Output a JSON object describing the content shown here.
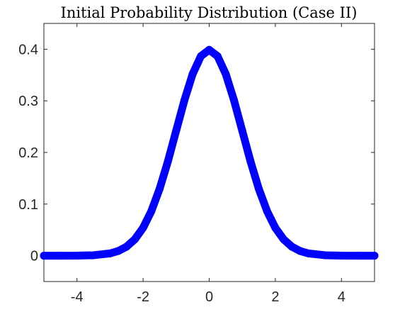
{
  "chart_data": {
    "type": "line",
    "title": "Initial Probability Distribution (Case II)",
    "xlabel": "",
    "ylabel": "",
    "xlim": [
      -5,
      5
    ],
    "ylim": [
      -0.05,
      0.45
    ],
    "xticks": [
      -4,
      -2,
      0,
      2,
      4
    ],
    "xtick_labels": [
      "-4",
      "-2",
      "0",
      "2",
      "4"
    ],
    "yticks": [
      0,
      0.1,
      0.2,
      0.3,
      0.4
    ],
    "ytick_labels": [
      "0",
      "0.1",
      "0.2",
      "0.3",
      "0.4"
    ],
    "grid": false,
    "legend": "none",
    "series": [
      {
        "color": "#0000ff",
        "x": [
          -5,
          -4.5,
          -4,
          -3.5,
          -3,
          -2.75,
          -2.5,
          -2.25,
          -2,
          -1.75,
          -1.5,
          -1.25,
          -1,
          -0.75,
          -0.5,
          -0.25,
          0,
          0.25,
          0.5,
          0.75,
          1,
          1.25,
          1.5,
          1.75,
          2,
          2.25,
          2.5,
          2.75,
          3,
          3.5,
          4,
          4.5,
          5
        ],
        "y": [
          0.0,
          0.0,
          0.0001,
          0.0009,
          0.0044,
          0.0091,
          0.0175,
          0.0317,
          0.054,
          0.0863,
          0.1295,
          0.1826,
          0.242,
          0.3011,
          0.3521,
          0.3867,
          0.3989,
          0.3867,
          0.3521,
          0.3011,
          0.242,
          0.1826,
          0.1295,
          0.0863,
          0.054,
          0.0317,
          0.0175,
          0.0091,
          0.0044,
          0.0009,
          0.0001,
          0.0,
          0.0
        ]
      }
    ]
  }
}
